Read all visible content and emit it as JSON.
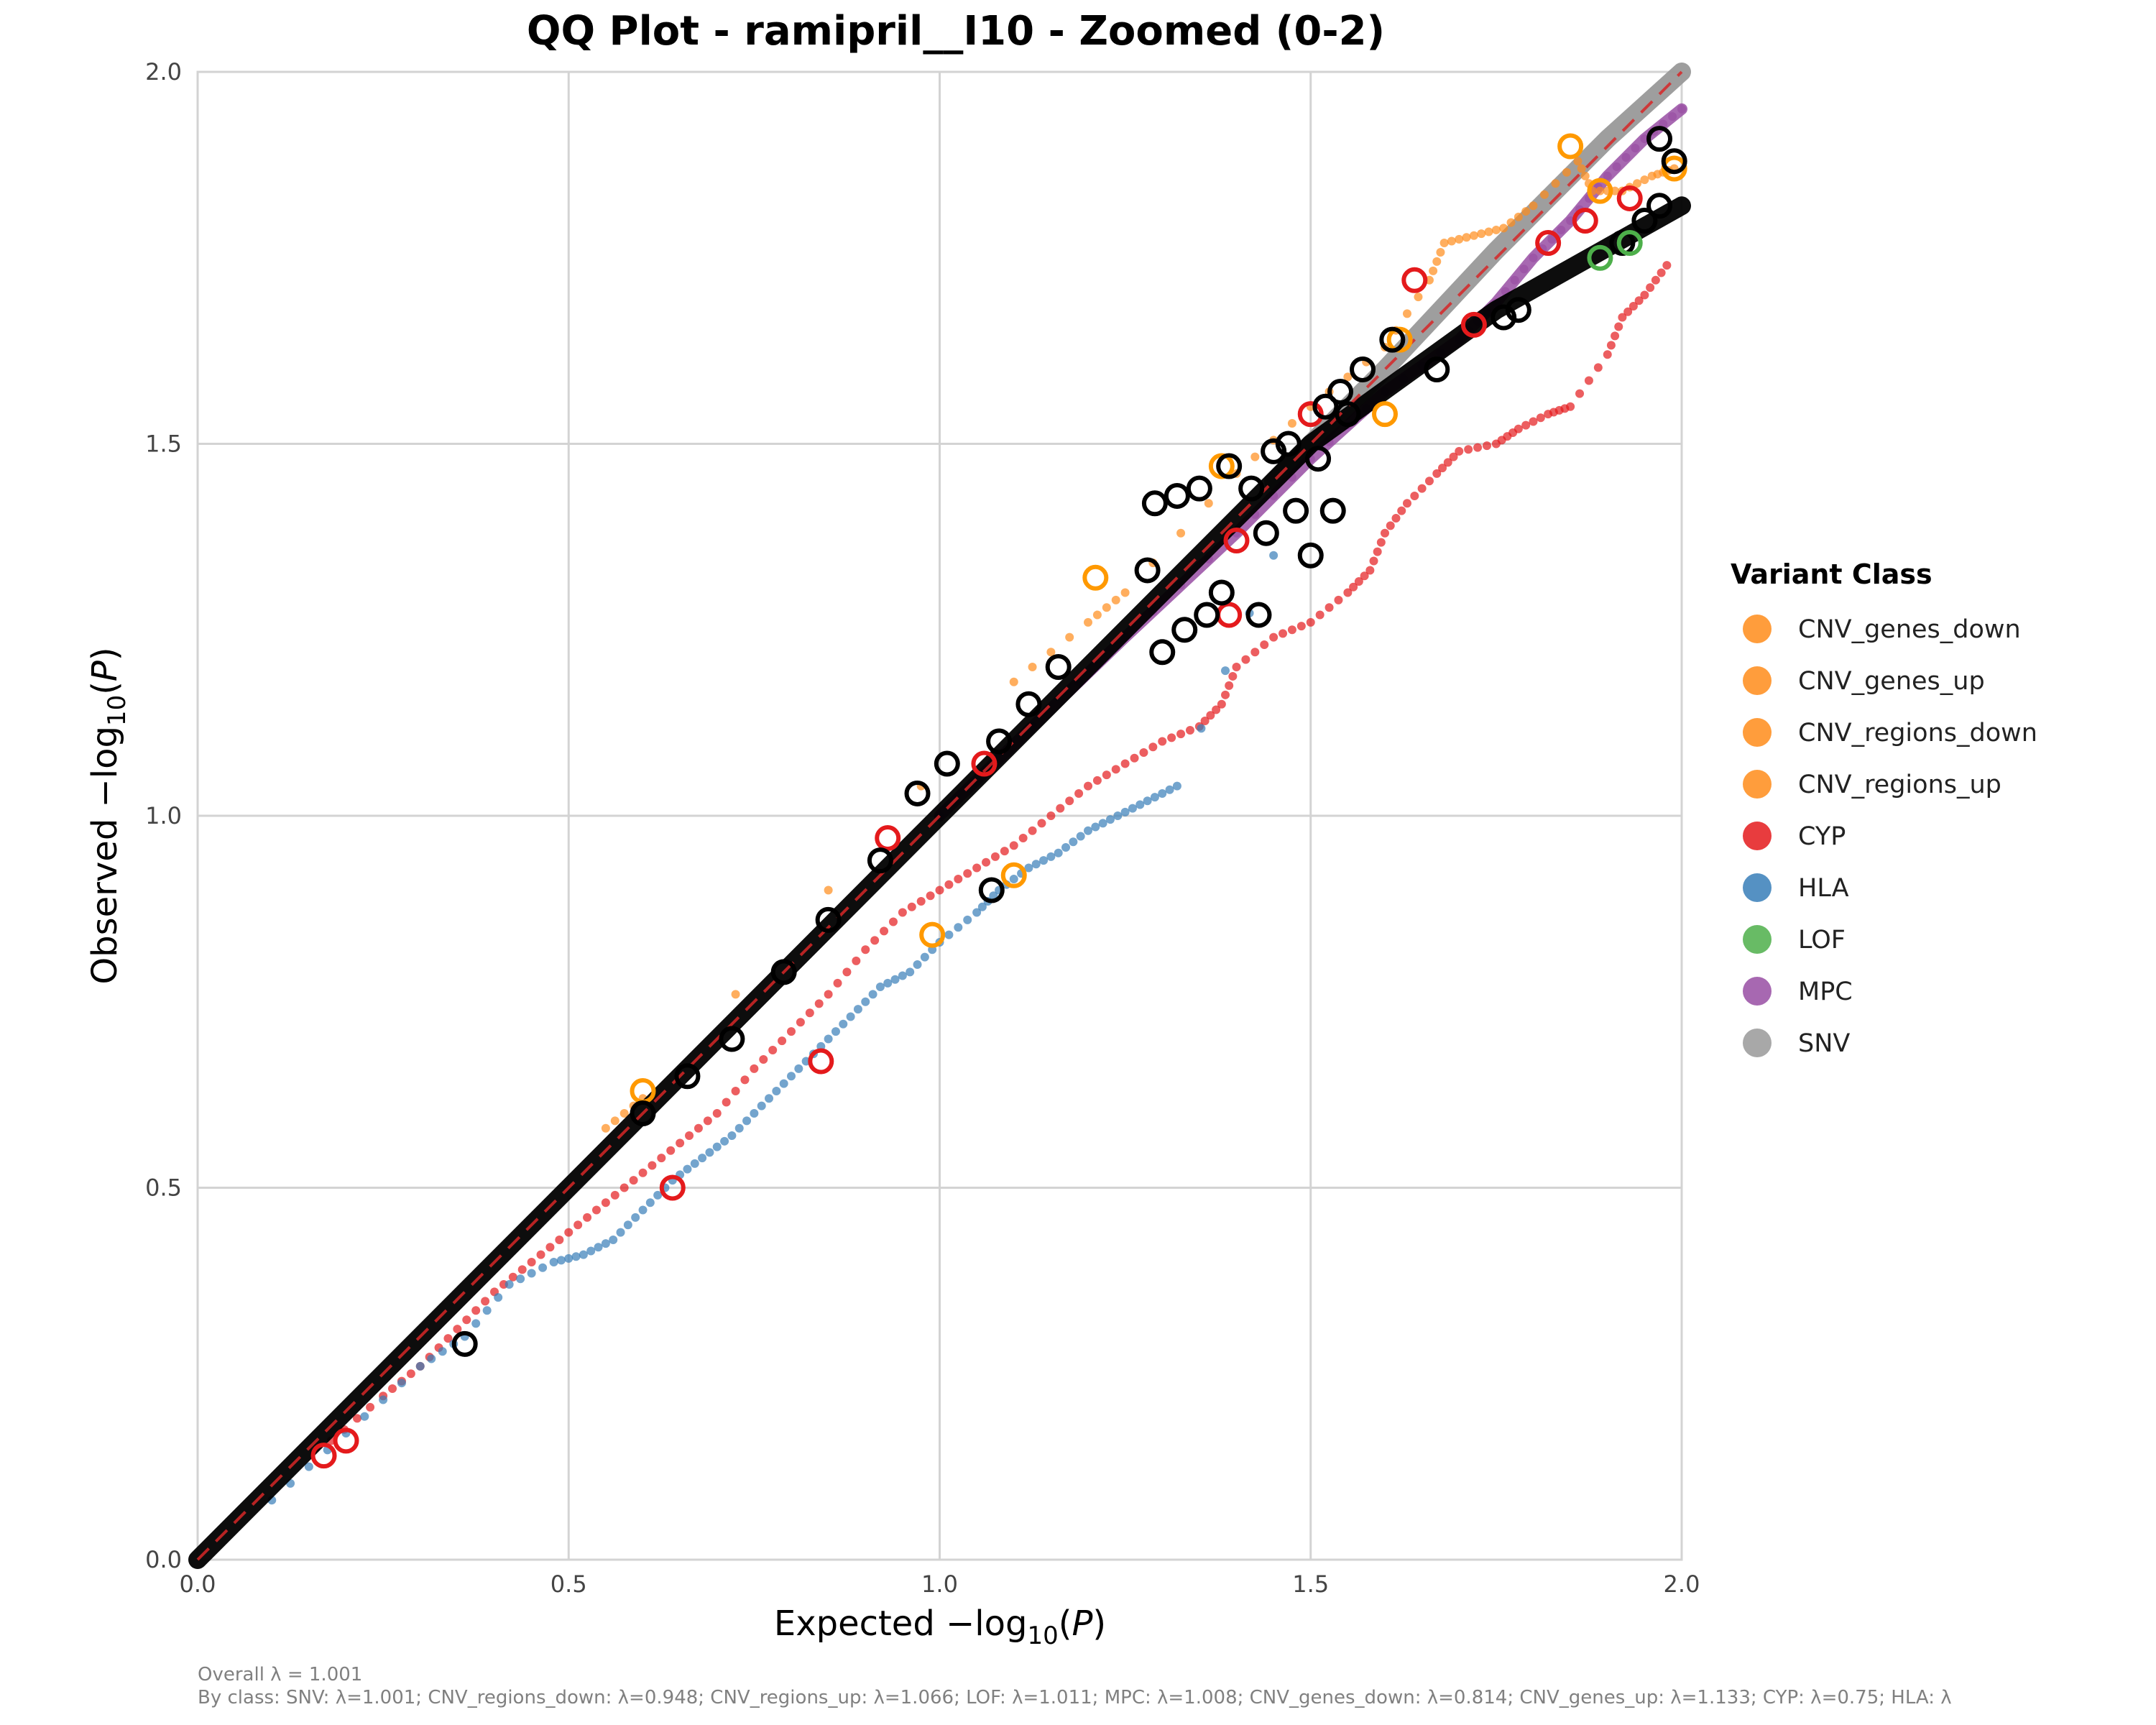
{
  "chart_data": {
    "type": "scatter",
    "title": "QQ Plot - ramipril__I10 - Zoomed (0-2)",
    "xlabel": {
      "prefix": "Expected −log",
      "sub": "10",
      "paren": "(",
      "var": "P",
      "close": ")"
    },
    "ylabel": {
      "prefix": "Observed −log",
      "sub": "10",
      "paren": "(",
      "var": "P",
      "close": ")"
    },
    "xlim": [
      0,
      2
    ],
    "ylim": [
      0,
      2
    ],
    "xticks": [
      "0.0",
      "0.5",
      "1.0",
      "1.5",
      "2.0"
    ],
    "yticks": [
      "0.0",
      "0.5",
      "1.0",
      "1.5",
      "2.0"
    ],
    "grid": true,
    "reference_line": {
      "style": "dashed",
      "color": "#d62728",
      "from": [
        0,
        0
      ],
      "to": [
        2,
        2
      ]
    },
    "legend": {
      "title": "Variant Class",
      "placement": "right",
      "entries": [
        {
          "name": "CNV_genes_down",
          "color": "#ff8c1a"
        },
        {
          "name": "CNV_genes_up",
          "color": "#ff8c1a"
        },
        {
          "name": "CNV_regions_down",
          "color": "#ff8c1a"
        },
        {
          "name": "CNV_regions_up",
          "color": "#ff8c1a"
        },
        {
          "name": "CYP",
          "color": "#e41a1c"
        },
        {
          "name": "HLA",
          "color": "#377eb8"
        },
        {
          "name": "LOF",
          "color": "#4daf4a"
        },
        {
          "name": "MPC",
          "color": "#984ea3"
        },
        {
          "name": "SNV",
          "color": "#999999"
        }
      ]
    },
    "series": [
      {
        "name": "SNV",
        "color": "#999999",
        "style": "band",
        "points": [
          [
            1.45,
            1.45
          ],
          [
            1.6,
            1.6
          ],
          [
            1.75,
            1.76
          ],
          [
            1.9,
            1.91
          ],
          [
            2.0,
            2.0
          ]
        ]
      },
      {
        "name": "MPC",
        "color": "#984ea3",
        "style": "line",
        "points": [
          [
            1.0,
            1.0
          ],
          [
            1.25,
            1.24
          ],
          [
            1.4,
            1.38
          ],
          [
            1.5,
            1.48
          ],
          [
            1.6,
            1.57
          ],
          [
            1.7,
            1.64
          ],
          [
            1.75,
            1.69
          ],
          [
            1.8,
            1.75
          ],
          [
            1.85,
            1.8
          ],
          [
            1.9,
            1.86
          ],
          [
            1.95,
            1.91
          ],
          [
            2.0,
            1.95
          ]
        ]
      },
      {
        "name": "CYP",
        "color": "#e41a1c",
        "style": "points",
        "points": [
          [
            0.18,
            0.16
          ],
          [
            0.25,
            0.22
          ],
          [
            0.3,
            0.26
          ],
          [
            0.35,
            0.31
          ],
          [
            0.4,
            0.36
          ],
          [
            0.45,
            0.4
          ],
          [
            0.5,
            0.44
          ],
          [
            0.55,
            0.48
          ],
          [
            0.6,
            0.52
          ],
          [
            0.65,
            0.56
          ],
          [
            0.7,
            0.6
          ],
          [
            0.75,
            0.66
          ],
          [
            0.8,
            0.71
          ],
          [
            0.85,
            0.76
          ],
          [
            0.9,
            0.82
          ],
          [
            0.95,
            0.87
          ],
          [
            1.0,
            0.9
          ],
          [
            1.05,
            0.93
          ],
          [
            1.1,
            0.96
          ],
          [
            1.15,
            1.0
          ],
          [
            1.2,
            1.04
          ],
          [
            1.25,
            1.07
          ],
          [
            1.3,
            1.1
          ],
          [
            1.35,
            1.12
          ],
          [
            1.38,
            1.15
          ],
          [
            1.4,
            1.2
          ],
          [
            1.45,
            1.24
          ],
          [
            1.5,
            1.26
          ],
          [
            1.55,
            1.3
          ],
          [
            1.58,
            1.33
          ],
          [
            1.6,
            1.38
          ],
          [
            1.63,
            1.42
          ],
          [
            1.67,
            1.46
          ],
          [
            1.7,
            1.49
          ],
          [
            1.75,
            1.5
          ],
          [
            1.78,
            1.52
          ],
          [
            1.82,
            1.54
          ],
          [
            1.85,
            1.55
          ],
          [
            1.9,
            1.62
          ],
          [
            1.92,
            1.67
          ],
          [
            1.95,
            1.7
          ],
          [
            1.98,
            1.74
          ]
        ]
      },
      {
        "name": "HLA",
        "color": "#377eb8",
        "style": "points",
        "points": [
          [
            0.1,
            0.08
          ],
          [
            0.2,
            0.17
          ],
          [
            0.3,
            0.26
          ],
          [
            0.36,
            0.3
          ],
          [
            0.42,
            0.37
          ],
          [
            0.48,
            0.4
          ],
          [
            0.52,
            0.41
          ],
          [
            0.56,
            0.43
          ],
          [
            0.6,
            0.47
          ],
          [
            0.64,
            0.51
          ],
          [
            0.68,
            0.54
          ],
          [
            0.72,
            0.57
          ],
          [
            0.76,
            0.61
          ],
          [
            0.8,
            0.65
          ],
          [
            0.84,
            0.69
          ],
          [
            0.88,
            0.73
          ],
          [
            0.92,
            0.77
          ],
          [
            0.96,
            0.79
          ],
          [
            1.0,
            0.83
          ],
          [
            1.05,
            0.87
          ],
          [
            1.08,
            0.9
          ],
          [
            1.12,
            0.93
          ],
          [
            1.16,
            0.95
          ],
          [
            1.2,
            0.98
          ],
          [
            1.24,
            1.0
          ],
          [
            1.28,
            1.02
          ],
          [
            1.32,
            1.04
          ],
          [
            1.45,
            1.35
          ]
        ]
      },
      {
        "name": "CNV_regions_up",
        "color": "#ff8c1a",
        "style": "points",
        "points": [
          [
            0.55,
            0.58
          ],
          [
            0.6,
            0.62
          ],
          [
            1.1,
            1.18
          ],
          [
            1.2,
            1.26
          ],
          [
            1.25,
            1.3
          ],
          [
            1.4,
            1.46
          ],
          [
            1.5,
            1.55
          ],
          [
            1.6,
            1.63
          ],
          [
            1.66,
            1.72
          ],
          [
            1.68,
            1.77
          ],
          [
            1.72,
            1.78
          ],
          [
            1.76,
            1.79
          ],
          [
            1.8,
            1.82
          ],
          [
            1.86,
            1.88
          ],
          [
            1.88,
            1.84
          ],
          [
            1.92,
            1.84
          ],
          [
            1.96,
            1.86
          ],
          [
            1.99,
            1.87
          ]
        ]
      },
      {
        "name": "SNV (diagonal)",
        "color": "#000000",
        "style": "band",
        "points": [
          [
            0.0,
            0.0
          ],
          [
            0.5,
            0.5
          ],
          [
            1.0,
            1.0
          ],
          [
            1.5,
            1.5
          ],
          [
            1.75,
            1.68
          ],
          [
            2.0,
            1.82
          ]
        ]
      }
    ],
    "highlighted": [
      {
        "class": "CNV_genes_down",
        "color": "#ff9900",
        "points": [
          [
            0.99,
            0.84
          ],
          [
            1.1,
            0.92
          ],
          [
            1.21,
            1.32
          ],
          [
            1.6,
            1.54
          ],
          [
            1.62,
            1.64
          ],
          [
            1.85,
            1.9
          ],
          [
            1.89,
            1.84
          ],
          [
            1.99,
            1.87
          ],
          [
            0.6,
            0.63
          ],
          [
            1.38,
            1.47
          ]
        ]
      },
      {
        "class": "CYP",
        "color": "#e41a1c",
        "points": [
          [
            0.17,
            0.14
          ],
          [
            0.2,
            0.16
          ],
          [
            0.64,
            0.5
          ],
          [
            0.84,
            0.67
          ],
          [
            1.39,
            1.27
          ],
          [
            1.5,
            1.54
          ],
          [
            1.64,
            1.72
          ],
          [
            1.82,
            1.77
          ],
          [
            1.87,
            1.8
          ],
          [
            1.93,
            1.83
          ],
          [
            1.72,
            1.66
          ],
          [
            1.4,
            1.37
          ],
          [
            0.93,
            0.97
          ],
          [
            1.06,
            1.07
          ]
        ]
      },
      {
        "class": "overall",
        "color": "#000000",
        "points": [
          [
            0.36,
            0.29
          ],
          [
            1.07,
            0.9
          ],
          [
            1.29,
            1.42
          ],
          [
            1.32,
            1.43
          ],
          [
            1.35,
            1.44
          ],
          [
            1.39,
            1.47
          ],
          [
            1.42,
            1.44
          ],
          [
            1.45,
            1.49
          ],
          [
            1.47,
            1.5
          ],
          [
            1.51,
            1.48
          ],
          [
            1.52,
            1.55
          ],
          [
            1.54,
            1.57
          ],
          [
            1.57,
            1.6
          ],
          [
            1.61,
            1.64
          ],
          [
            1.43,
            1.27
          ],
          [
            1.5,
            1.35
          ],
          [
            1.53,
            1.41
          ],
          [
            1.48,
            1.41
          ],
          [
            1.44,
            1.38
          ],
          [
            1.28,
            1.33
          ],
          [
            1.3,
            1.22
          ],
          [
            1.33,
            1.25
          ],
          [
            1.36,
            1.27
          ],
          [
            1.38,
            1.3
          ],
          [
            1.16,
            1.2
          ],
          [
            1.12,
            1.15
          ],
          [
            1.08,
            1.1
          ],
          [
            1.01,
            1.07
          ],
          [
            0.97,
            1.03
          ],
          [
            0.92,
            0.94
          ],
          [
            0.85,
            0.86
          ],
          [
            0.79,
            0.79
          ],
          [
            0.72,
            0.7
          ],
          [
            0.66,
            0.65
          ],
          [
            0.6,
            0.6
          ],
          [
            1.97,
            1.91
          ],
          [
            1.99,
            1.88
          ],
          [
            1.97,
            1.82
          ],
          [
            1.95,
            1.8
          ],
          [
            1.92,
            1.77
          ],
          [
            1.78,
            1.68
          ],
          [
            1.76,
            1.67
          ],
          [
            1.67,
            1.6
          ],
          [
            1.55,
            1.54
          ]
        ]
      },
      {
        "class": "LOF",
        "color": "#4daf4a",
        "points": [
          [
            1.89,
            1.75
          ],
          [
            1.93,
            1.77
          ]
        ]
      }
    ],
    "footnotes": [
      "Overall λ = 1.001",
      "By class: SNV: λ=1.001; CNV_regions_down: λ=0.948; CNV_regions_up: λ=1.066; LOF: λ=1.011; MPC: λ=1.008; CNV_genes_down: λ=0.814; CNV_genes_up: λ=1.133; CYP: λ=0.75; HLA: λ"
    ]
  }
}
